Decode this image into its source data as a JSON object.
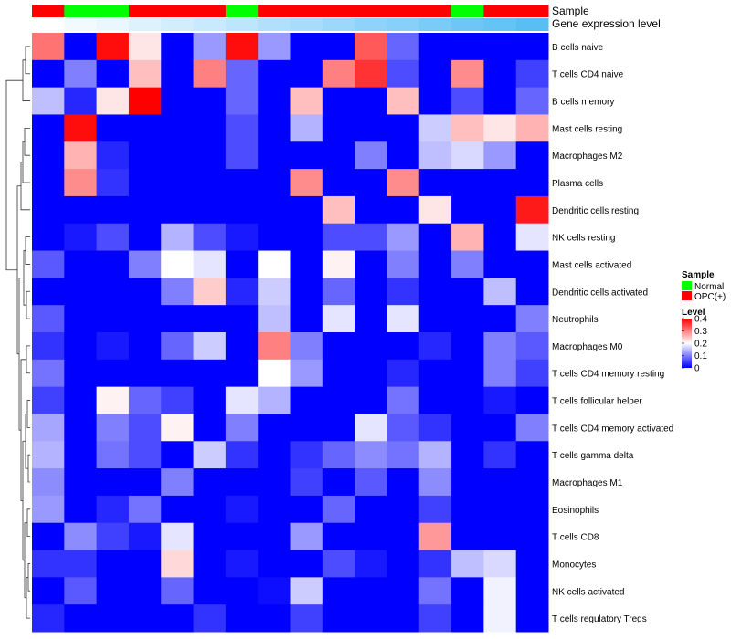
{
  "chart_data": {
    "type": "heatmap",
    "annotation_titles": [
      "Sample",
      "Gene expression level"
    ],
    "sample_annotation": [
      "OPC(+)",
      "Normal",
      "Normal",
      "OPC(+)",
      "OPC(+)",
      "OPC(+)",
      "Normal",
      "OPC(+)",
      "OPC(+)",
      "OPC(+)",
      "OPC(+)",
      "OPC(+)",
      "OPC(+)",
      "Normal",
      "OPC(+)",
      "OPC(+)"
    ],
    "expression_gradient": [
      0.0,
      0.07,
      0.13,
      0.2,
      0.27,
      0.33,
      0.4,
      0.47,
      0.53,
      0.6,
      0.67,
      0.73,
      0.8,
      0.87,
      0.93,
      1.0
    ],
    "rows": [
      "B cells naive",
      "T cells CD4 naive",
      "B cells memory",
      "Mast cells resting",
      "Macrophages M2",
      "Plasma cells",
      "Dendritic cells resting",
      "NK cells resting",
      "Mast cells activated",
      "Dendritic cells activated",
      "Neutrophils",
      "Macrophages M0",
      "T cells CD4 memory resting",
      "T cells follicular helper",
      "T cells CD4 memory activated",
      "T cells gamma delta",
      "Macrophages M1",
      "Eosinophils",
      "T cells CD8",
      "Monocytes",
      "NK cells activated",
      "T cells regulatory  Tregs"
    ],
    "values": [
      [
        0.31,
        0.0,
        0.39,
        0.22,
        0.0,
        0.12,
        0.39,
        0.12,
        0.0,
        0.0,
        0.33,
        0.08,
        0.0,
        0.0,
        0.0,
        0.0
      ],
      [
        0.0,
        0.1,
        0.0,
        0.25,
        0.0,
        0.3,
        0.08,
        0.0,
        0.0,
        0.3,
        0.36,
        0.06,
        0.0,
        0.29,
        0.0,
        0.05
      ],
      [
        0.15,
        0.03,
        0.22,
        0.4,
        0.0,
        0.0,
        0.08,
        0.0,
        0.25,
        0.0,
        0.0,
        0.25,
        0.0,
        0.06,
        0.0,
        0.08
      ],
      [
        0.0,
        0.39,
        0.0,
        0.0,
        0.0,
        0.0,
        0.06,
        0.0,
        0.14,
        0.0,
        0.0,
        0.0,
        0.16,
        0.25,
        0.22,
        0.26
      ],
      [
        0.0,
        0.26,
        0.03,
        0.0,
        0.0,
        0.0,
        0.06,
        0.0,
        0.0,
        0.0,
        0.1,
        0.0,
        0.15,
        0.17,
        0.12,
        0.0
      ],
      [
        0.0,
        0.29,
        0.04,
        0.0,
        0.0,
        0.0,
        0.0,
        0.0,
        0.29,
        0.0,
        0.0,
        0.29,
        0.0,
        0.0,
        0.0,
        0.0
      ],
      [
        0.0,
        0.0,
        0.0,
        0.0,
        0.0,
        0.0,
        0.0,
        0.0,
        0.0,
        0.25,
        0.0,
        0.0,
        0.22,
        0.0,
        0.0,
        0.38
      ],
      [
        0.0,
        0.02,
        0.06,
        0.0,
        0.14,
        0.06,
        0.02,
        0.0,
        0.0,
        0.06,
        0.06,
        0.12,
        0.0,
        0.26,
        0.0,
        0.18
      ],
      [
        0.07,
        0.0,
        0.0,
        0.1,
        0.2,
        0.18,
        0.0,
        0.2,
        0.0,
        0.21,
        0.0,
        0.1,
        0.0,
        0.1,
        0.0,
        0.0
      ],
      [
        0.0,
        0.0,
        0.0,
        0.0,
        0.1,
        0.24,
        0.03,
        0.16,
        0.0,
        0.08,
        0.0,
        0.04,
        0.0,
        0.0,
        0.15,
        0.0
      ],
      [
        0.07,
        0.0,
        0.0,
        0.0,
        0.0,
        0.0,
        0.0,
        0.15,
        0.0,
        0.18,
        0.0,
        0.18,
        0.0,
        0.0,
        0.0,
        0.1
      ],
      [
        0.04,
        0.0,
        0.02,
        0.0,
        0.08,
        0.16,
        0.0,
        0.3,
        0.1,
        0.0,
        0.0,
        0.0,
        0.03,
        0.0,
        0.1,
        0.07
      ],
      [
        0.09,
        0.0,
        0.0,
        0.0,
        0.0,
        0.0,
        0.0,
        0.2,
        0.12,
        0.0,
        0.0,
        0.03,
        0.0,
        0.0,
        0.1,
        0.05
      ],
      [
        0.05,
        0.0,
        0.21,
        0.08,
        0.05,
        0.0,
        0.18,
        0.14,
        0.0,
        0.0,
        0.0,
        0.09,
        0.0,
        0.0,
        0.02,
        0.0
      ],
      [
        0.13,
        0.0,
        0.1,
        0.06,
        0.21,
        0.0,
        0.1,
        0.0,
        0.0,
        0.0,
        0.18,
        0.07,
        0.04,
        0.0,
        0.0,
        0.1
      ],
      [
        0.14,
        0.0,
        0.09,
        0.06,
        0.0,
        0.16,
        0.04,
        0.0,
        0.04,
        0.08,
        0.11,
        0.09,
        0.14,
        0.0,
        0.04,
        0.0
      ],
      [
        0.11,
        0.0,
        0.0,
        0.0,
        0.1,
        0.0,
        0.0,
        0.0,
        0.05,
        0.0,
        0.07,
        0.0,
        0.11,
        0.0,
        0.0,
        0.0
      ],
      [
        0.12,
        0.0,
        0.03,
        0.09,
        0.0,
        0.0,
        0.02,
        0.0,
        0.0,
        0.08,
        0.0,
        0.0,
        0.05,
        0.0,
        0.0,
        0.0
      ],
      [
        0.0,
        0.11,
        0.05,
        0.02,
        0.18,
        0.0,
        0.0,
        0.0,
        0.12,
        0.0,
        0.0,
        0.0,
        0.28,
        0.0,
        0.0,
        0.0
      ],
      [
        0.04,
        0.04,
        0.0,
        0.0,
        0.23,
        0.0,
        0.02,
        0.0,
        0.0,
        0.06,
        0.02,
        0.0,
        0.04,
        0.15,
        0.17,
        0.0
      ],
      [
        0.0,
        0.07,
        0.0,
        0.0,
        0.08,
        0.0,
        0.0,
        0.01,
        0.16,
        0.0,
        0.0,
        0.0,
        0.09,
        0.0,
        0.19,
        0.0
      ],
      [
        0.03,
        0.0,
        0.0,
        0.0,
        0.0,
        0.04,
        0.0,
        0.0,
        0.05,
        0.0,
        0.0,
        0.0,
        0.05,
        0.0,
        0.19,
        0.0
      ]
    ],
    "color_scale": {
      "min": 0,
      "max": 0.4,
      "low": "#0000ff",
      "mid": "#ffffff",
      "high": "#ff0000"
    },
    "legend": {
      "sample_title": "Sample",
      "sample_entries": [
        {
          "label": "Normal",
          "color": "#00ff00"
        },
        {
          "label": "OPC(+)",
          "color": "#ff0000"
        }
      ],
      "level_title": "Level",
      "level_ticks": [
        "0.4",
        "0.3",
        "0.2",
        "0.1",
        "0"
      ],
      "level_values": [
        0.4,
        0.3,
        0.2,
        0.1,
        0
      ]
    },
    "row_dendrogram": true
  }
}
